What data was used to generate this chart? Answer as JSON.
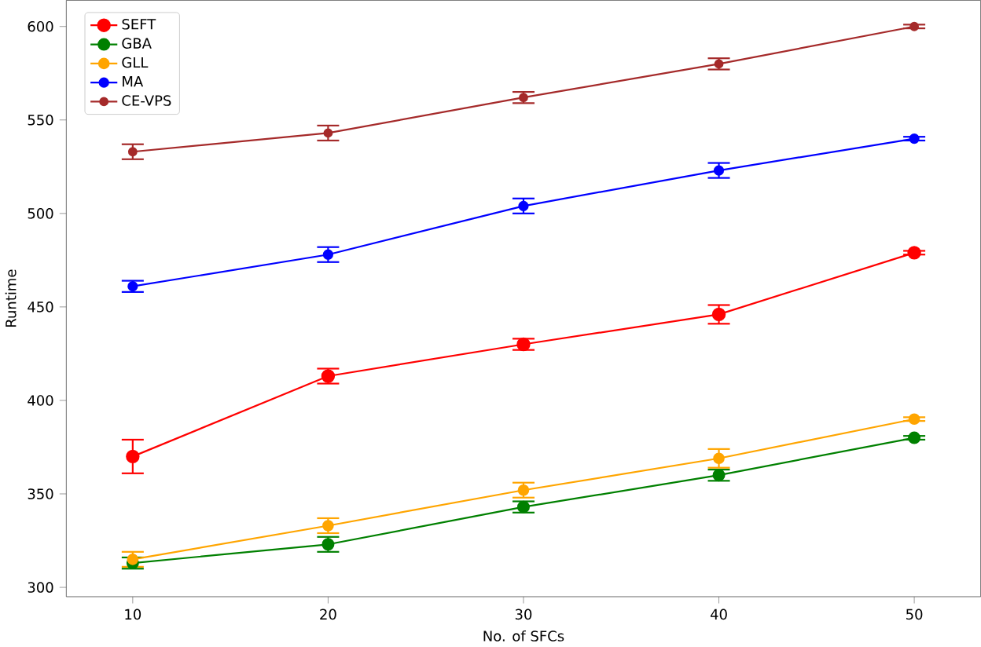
{
  "chart_data": {
    "type": "line",
    "xlabel": "No. of SFCs",
    "ylabel": "Runtime",
    "x": [
      10,
      20,
      30,
      40,
      50
    ],
    "series": [
      {
        "name": "SEFT",
        "color": "#ff0000",
        "values": [
          370,
          413,
          430,
          446,
          479
        ],
        "errors": [
          9,
          4,
          3,
          5,
          1
        ]
      },
      {
        "name": "GBA",
        "color": "#008000",
        "values": [
          313,
          323,
          343,
          360,
          380
        ],
        "errors": [
          3,
          4,
          3,
          3,
          1
        ]
      },
      {
        "name": "GLL",
        "color": "#ffa500",
        "values": [
          315,
          333,
          352,
          369,
          390
        ],
        "errors": [
          4,
          4,
          4,
          5,
          1
        ]
      },
      {
        "name": "MA",
        "color": "#0000ff",
        "values": [
          461,
          478,
          504,
          523,
          540
        ],
        "errors": [
          3,
          4,
          4,
          4,
          1
        ]
      },
      {
        "name": "CE-VPS",
        "color": "#a52a2a",
        "values": [
          533,
          543,
          562,
          580,
          600
        ],
        "errors": [
          4,
          4,
          3,
          3,
          1
        ]
      }
    ],
    "xlim": [
      6.6,
      53.4
    ],
    "ylim": [
      295,
      614
    ],
    "xticks": [
      10,
      20,
      30,
      40,
      50
    ],
    "yticks": [
      300,
      350,
      400,
      450,
      500,
      550,
      600
    ],
    "legend": "top left",
    "marker": "circle",
    "line_style": "solid",
    "grid": false
  }
}
